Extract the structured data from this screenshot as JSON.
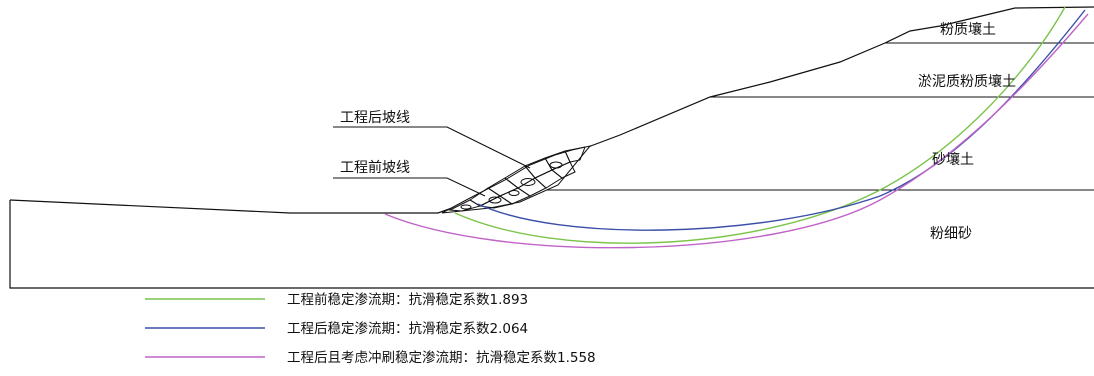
{
  "colors": {
    "outline": "#111111",
    "pre_project_arc": "#7cc34a",
    "post_project_arc": "#3a4fa8",
    "scour_arc": "#c063c8"
  },
  "soil_layers": {
    "silty_loam": "粉质壤土",
    "silt_silty_loam": "淤泥质粉质壤土",
    "sandy_loam": "砂壤土",
    "fine_sand": "粉细砂"
  },
  "callouts": {
    "post_project_slope": "工程后坡线",
    "pre_project_slope": "工程前坡线"
  },
  "legend": [
    {
      "label": "工程前稳定渗流期：抗滑稳定系数1.893",
      "color_key": "pre_project_arc",
      "icon": "green-line"
    },
    {
      "label": "工程后稳定渗流期：抗滑稳定系数2.064",
      "color_key": "post_project_arc",
      "icon": "blue-line"
    },
    {
      "label": "工程后且考虑冲刷稳定渗流期：抗滑稳定系数1.558",
      "color_key": "scour_arc",
      "icon": "purple-line"
    }
  ]
}
